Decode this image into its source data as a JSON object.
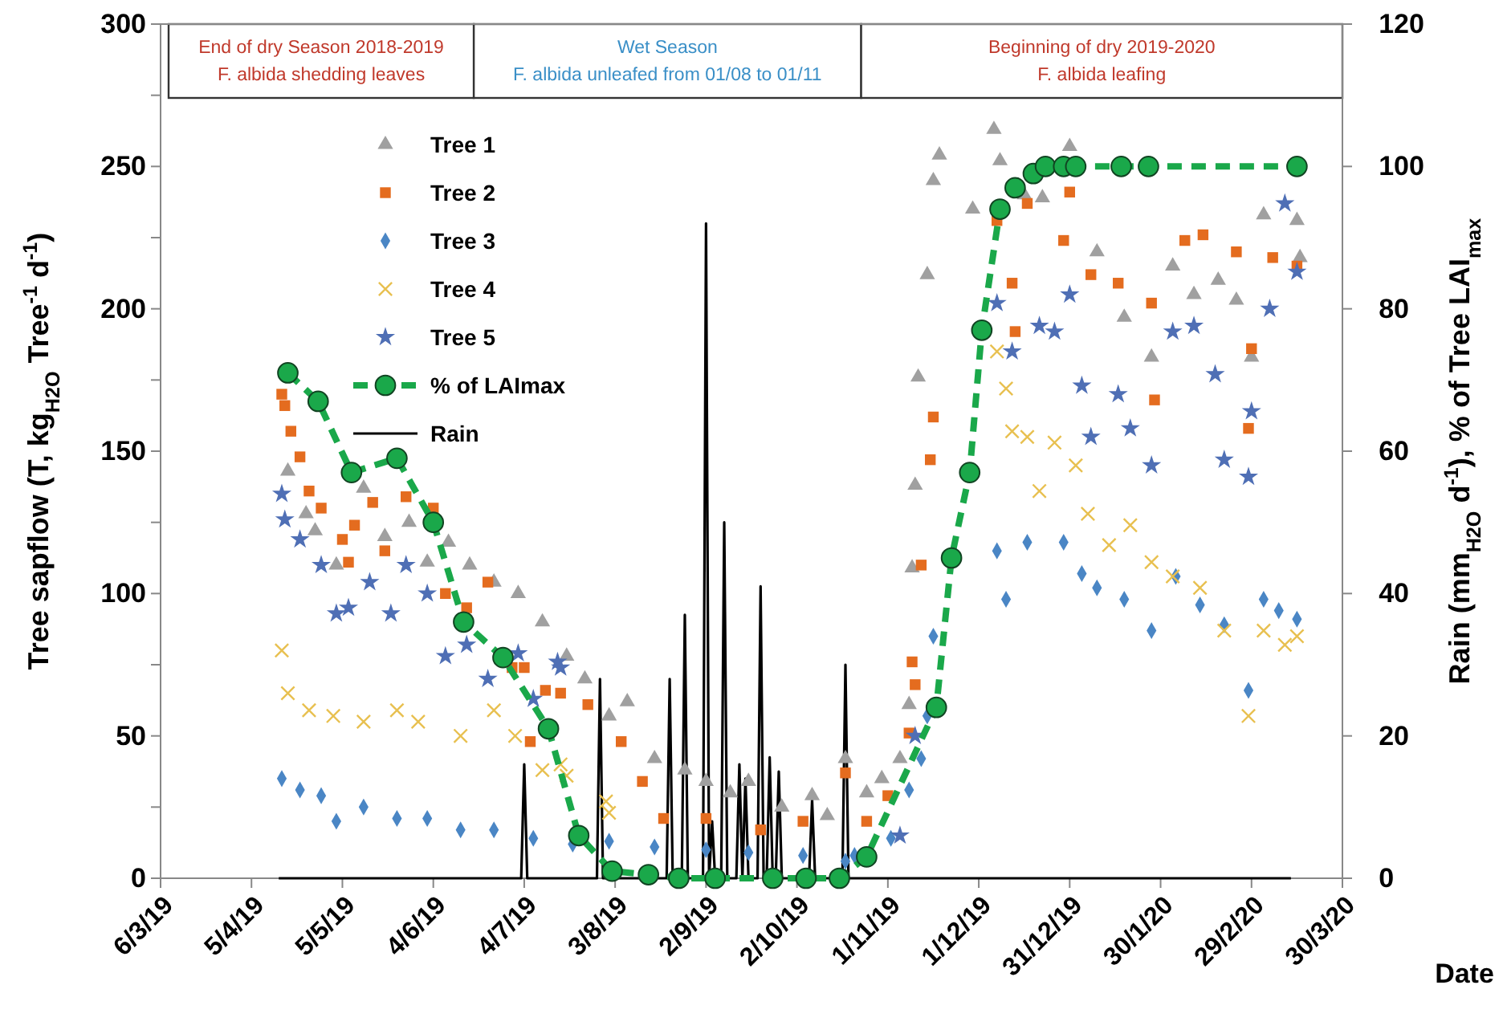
{
  "chart_data": {
    "type": "scatter",
    "ylabel": "Tree sapflow (T, kg$_{H2O}$ Tree$^{-1}$ d$^{-1}$)",
    "y2label": "Rain (mm$_{H2O}$ d$^{-1}$),  % of Tree LAI$_{max}$",
    "xlabel": "Date",
    "annotations": [
      "End of dry Season 2018-2019\nF. albida shedding leaves",
      "Wet Season\nF. albida unleafed from 01/08  to 01/11",
      "Beginning of dry 2019-2020\nF. albida leafing"
    ],
    "xlim": [
      "2019-03-06",
      "2020-03-30"
    ],
    "xticks": [
      {
        "value": "2019-03-06",
        "label": "6/3/19"
      },
      {
        "value": "2019-04-05",
        "label": "5/4/19"
      },
      {
        "value": "2019-05-05",
        "label": "5/5/19"
      },
      {
        "value": "2019-06-04",
        "label": "4/6/19"
      },
      {
        "value": "2019-07-04",
        "label": "4/7/19"
      },
      {
        "value": "2019-08-03",
        "label": "3/8/19"
      },
      {
        "value": "2019-09-02",
        "label": "2/9/19"
      },
      {
        "value": "2019-10-02",
        "label": "2/10/19"
      },
      {
        "value": "2019-11-01",
        "label": "1/11/19"
      },
      {
        "value": "2019-12-01",
        "label": "1/12/19"
      },
      {
        "value": "2019-12-31",
        "label": "31/12/19"
      },
      {
        "value": "2020-01-30",
        "label": "30/1/20"
      },
      {
        "value": "2020-02-29",
        "label": "29/2/20"
      },
      {
        "value": "2020-03-30",
        "label": "30/3/20"
      }
    ],
    "ylim": [
      0,
      300
    ],
    "yticks": [
      0,
      {
        "value": 25,
        "label": null
      },
      50,
      {
        "value": 75,
        "label": null
      },
      100,
      {
        "value": 125,
        "label": null
      },
      150,
      {
        "value": 175,
        "label": null
      },
      200,
      {
        "value": 225,
        "label": null
      },
      250,
      {
        "value": 275,
        "label": null
      },
      300
    ],
    "y2lim": [
      0,
      120
    ],
    "y2ticks": [
      0,
      20,
      40,
      60,
      80,
      100,
      120
    ],
    "grid": false,
    "legend": "top left",
    "series": [
      {
        "name": "Tree 1",
        "marker": "triangle",
        "color": "#a0a0a0",
        "x": [
          "2019-04-17",
          "2019-04-23",
          "2019-04-26",
          "2019-05-03",
          "2019-05-12",
          "2019-05-19",
          "2019-05-27",
          "2019-06-02",
          "2019-06-09",
          "2019-06-16",
          "2019-06-24",
          "2019-07-02",
          "2019-07-10",
          "2019-07-18",
          "2019-07-24",
          "2019-08-01",
          "2019-08-07",
          "2019-08-16",
          "2019-08-26",
          "2019-09-02",
          "2019-09-10",
          "2019-09-16",
          "2019-09-27",
          "2019-10-07",
          "2019-10-12",
          "2019-10-18",
          "2019-10-25",
          "2019-10-30",
          "2019-11-05",
          "2019-11-08",
          "2019-11-09",
          "2019-11-10",
          "2019-11-11",
          "2019-11-14",
          "2019-11-16",
          "2019-11-18",
          "2019-11-29",
          "2019-12-06",
          "2019-12-08",
          "2019-12-16",
          "2019-12-22",
          "2019-12-31",
          "2020-01-09",
          "2020-01-18",
          "2020-01-27",
          "2020-02-03",
          "2020-02-10",
          "2020-02-18",
          "2020-02-24",
          "2020-02-29",
          "2020-03-04",
          "2020-03-15",
          "2020-03-16"
        ],
        "values": [
          143,
          128,
          122,
          110,
          137,
          120,
          125,
          111,
          118,
          110,
          104,
          100,
          90,
          78,
          70,
          57,
          62,
          42,
          38,
          34,
          30,
          34,
          25,
          29,
          22,
          42,
          30,
          35,
          42,
          61,
          109,
          138,
          176,
          212,
          245,
          254,
          235,
          263,
          252,
          240,
          239,
          257,
          220,
          197,
          183,
          215,
          205,
          210,
          203,
          183,
          233,
          231,
          218
        ]
      },
      {
        "name": "Tree 2",
        "marker": "square",
        "color": "#e46c1f",
        "x": [
          "2019-04-15",
          "2019-04-16",
          "2019-04-18",
          "2019-04-21",
          "2019-04-24",
          "2019-04-28",
          "2019-05-05",
          "2019-05-07",
          "2019-05-09",
          "2019-05-15",
          "2019-05-19",
          "2019-05-26",
          "2019-06-04",
          "2019-06-08",
          "2019-06-15",
          "2019-06-22",
          "2019-06-30",
          "2019-07-04",
          "2019-07-06",
          "2019-07-11",
          "2019-07-16",
          "2019-07-25",
          "2019-08-05",
          "2019-08-12",
          "2019-08-19",
          "2019-09-02",
          "2019-09-20",
          "2019-10-04",
          "2019-10-18",
          "2019-10-25",
          "2019-11-01",
          "2019-11-08",
          "2019-11-09",
          "2019-11-10",
          "2019-11-12",
          "2019-11-15",
          "2019-11-16",
          "2019-12-07",
          "2019-12-12",
          "2019-12-13",
          "2019-12-17",
          "2019-12-29",
          "2019-12-31",
          "2020-01-07",
          "2020-01-16",
          "2020-01-27",
          "2020-01-28",
          "2020-02-07",
          "2020-02-13",
          "2020-02-24",
          "2020-02-28",
          "2020-02-29",
          "2020-03-07",
          "2020-03-15"
        ],
        "values": [
          170,
          166,
          157,
          148,
          136,
          130,
          119,
          111,
          124,
          132,
          115,
          134,
          130,
          100,
          95,
          104,
          74,
          74,
          48,
          66,
          65,
          61,
          48,
          34,
          21,
          21,
          17,
          20,
          37,
          20,
          29,
          51,
          76,
          68,
          110,
          147,
          162,
          231,
          209,
          192,
          237,
          224,
          241,
          212,
          209,
          202,
          168,
          224,
          226,
          220,
          158,
          186,
          218,
          215
        ]
      },
      {
        "name": "Tree 3",
        "marker": "diamond",
        "color": "#4a86c5",
        "x": [
          "2019-04-15",
          "2019-04-21",
          "2019-04-28",
          "2019-05-03",
          "2019-05-12",
          "2019-05-23",
          "2019-06-02",
          "2019-06-13",
          "2019-06-24",
          "2019-07-07",
          "2019-07-20",
          "2019-08-01",
          "2019-08-16",
          "2019-09-02",
          "2019-09-16",
          "2019-10-04",
          "2019-10-18",
          "2019-10-21",
          "2019-11-02",
          "2019-11-08",
          "2019-11-12",
          "2019-11-14",
          "2019-11-16",
          "2019-12-07",
          "2019-12-10",
          "2019-12-17",
          "2019-12-29",
          "2020-01-04",
          "2020-01-09",
          "2020-01-18",
          "2020-01-27",
          "2020-02-04",
          "2020-02-12",
          "2020-02-20",
          "2020-02-28",
          "2020-03-04",
          "2020-03-09",
          "2020-03-15"
        ],
        "values": [
          35,
          31,
          29,
          20,
          25,
          21,
          21,
          17,
          17,
          14,
          12,
          13,
          11,
          10,
          9,
          8,
          6,
          8,
          14,
          31,
          42,
          57,
          85,
          115,
          98,
          118,
          118,
          107,
          102,
          98,
          87,
          106,
          96,
          89,
          66,
          98,
          94,
          91
        ]
      },
      {
        "name": "Tree 4",
        "marker": "cross",
        "color": "#e8c050",
        "x": [
          "2019-04-15",
          "2019-04-17",
          "2019-04-24",
          "2019-05-02",
          "2019-05-12",
          "2019-05-23",
          "2019-05-30",
          "2019-06-13",
          "2019-06-24",
          "2019-07-01",
          "2019-07-10",
          "2019-07-16",
          "2019-07-18",
          "2019-07-31",
          "2019-08-01",
          "2019-12-07",
          "2019-12-10",
          "2019-12-12",
          "2019-12-17",
          "2019-12-21",
          "2019-12-26",
          "2020-01-02",
          "2020-01-06",
          "2020-01-13",
          "2020-01-20",
          "2020-01-27",
          "2020-02-03",
          "2020-02-12",
          "2020-02-20",
          "2020-02-28",
          "2020-03-04",
          "2020-03-11",
          "2020-03-15"
        ],
        "values": [
          80,
          65,
          59,
          57,
          55,
          59,
          55,
          50,
          59,
          50,
          38,
          40,
          36,
          27,
          23,
          185,
          172,
          157,
          155,
          136,
          153,
          145,
          128,
          117,
          124,
          111,
          106,
          102,
          87,
          57,
          87,
          82,
          85
        ]
      },
      {
        "name": "Tree 5",
        "marker": "star",
        "color": "#4f6fb5",
        "x": [
          "2019-04-15",
          "2019-04-16",
          "2019-04-21",
          "2019-04-28",
          "2019-05-03",
          "2019-05-07",
          "2019-05-14",
          "2019-05-21",
          "2019-05-26",
          "2019-06-02",
          "2019-06-08",
          "2019-06-15",
          "2019-06-22",
          "2019-07-02",
          "2019-07-07",
          "2019-07-15",
          "2019-07-16",
          "2019-11-05",
          "2019-11-10",
          "2019-12-07",
          "2019-12-12",
          "2019-12-21",
          "2019-12-26",
          "2019-12-31",
          "2020-01-04",
          "2020-01-07",
          "2020-01-16",
          "2020-01-20",
          "2020-01-27",
          "2020-02-03",
          "2020-02-10",
          "2020-02-17",
          "2020-02-20",
          "2020-02-28",
          "2020-02-29",
          "2020-03-06",
          "2020-03-11",
          "2020-03-15"
        ],
        "values": [
          135,
          126,
          119,
          110,
          93,
          95,
          104,
          93,
          110,
          100,
          78,
          82,
          70,
          79,
          63,
          76,
          74,
          15,
          50,
          202,
          185,
          194,
          192,
          205,
          173,
          155,
          170,
          158,
          145,
          192,
          194,
          177,
          147,
          141,
          164,
          200,
          237,
          213
        ]
      },
      {
        "name": "% of LAImax",
        "type": "line",
        "axis": "y2",
        "marker": "circle",
        "line_style": "dashed",
        "color": "#1aa84a",
        "x": [
          "2019-04-17",
          "2019-04-27",
          "2019-05-08",
          "2019-05-23",
          "2019-06-04",
          "2019-06-14",
          "2019-06-27",
          "2019-07-12",
          "2019-07-22",
          "2019-08-02",
          "2019-08-14",
          "2019-08-24",
          "2019-09-05",
          "2019-09-24",
          "2019-10-05",
          "2019-10-16",
          "2019-10-25",
          "2019-11-17",
          "2019-11-22",
          "2019-11-28",
          "2019-12-02",
          "2019-12-08",
          "2019-12-13",
          "2019-12-19",
          "2019-12-23",
          "2019-12-29",
          "2020-01-02",
          "2020-01-17",
          "2020-01-26",
          "2020-03-15"
        ],
        "values": [
          71,
          67,
          57,
          59,
          50,
          36,
          31,
          21,
          6,
          1,
          0.5,
          0,
          0,
          0,
          0,
          0,
          3,
          24,
          45,
          57,
          77,
          94,
          97,
          99,
          100,
          100,
          100,
          100,
          100,
          100
        ]
      },
      {
        "name": "Rain",
        "type": "line",
        "axis": "y2",
        "marker": "none",
        "line_style": "solid",
        "color": "#000000",
        "x": [
          "2019-04-14",
          "2019-07-03",
          "2019-07-04",
          "2019-07-05",
          "2019-07-28",
          "2019-07-29",
          "2019-07-30",
          "2019-08-20",
          "2019-08-21",
          "2019-08-22",
          "2019-08-25",
          "2019-08-26",
          "2019-08-27",
          "2019-09-01",
          "2019-09-02",
          "2019-09-03",
          "2019-09-04",
          "2019-09-05",
          "2019-09-07",
          "2019-09-08",
          "2019-09-09",
          "2019-09-12",
          "2019-09-13",
          "2019-09-14",
          "2019-09-15",
          "2019-09-16",
          "2019-09-19",
          "2019-09-20",
          "2019-09-21",
          "2019-09-22",
          "2019-09-23",
          "2019-09-24",
          "2019-09-25",
          "2019-09-26",
          "2019-09-27",
          "2019-10-06",
          "2019-10-07",
          "2019-10-08",
          "2019-10-17",
          "2019-10-18",
          "2019-10-19",
          "2020-03-13"
        ],
        "values": [
          0,
          0,
          16,
          0,
          0,
          28,
          0,
          0,
          28,
          0,
          0,
          37,
          0,
          0,
          92,
          0,
          8,
          0,
          0,
          50,
          0,
          0,
          16,
          0,
          14,
          0,
          0,
          41,
          0,
          0,
          17,
          0,
          0,
          15,
          0,
          0,
          11,
          0,
          0,
          30,
          0,
          0
        ]
      }
    ]
  }
}
